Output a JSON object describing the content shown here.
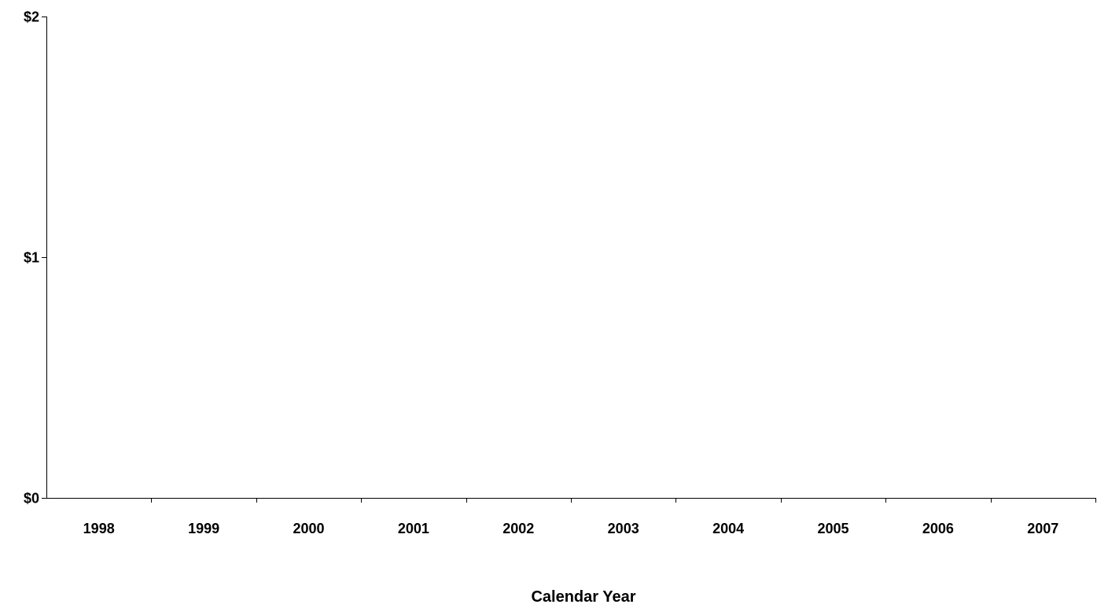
{
  "chart_data": {
    "type": "bar",
    "title": "",
    "xlabel": "Calendar Year",
    "ylabel": "",
    "categories": [
      "1998",
      "1999",
      "2000",
      "2001",
      "2002",
      "2003",
      "2004",
      "2005",
      "2006",
      "2007"
    ],
    "series": [],
    "ylim": [
      0,
      2
    ],
    "y_ticks": [
      0,
      1,
      2
    ],
    "y_tick_labels": [
      "$0",
      "$1",
      "$2"
    ],
    "grid": false,
    "legend": "none",
    "colors": {
      "axis": "#000000",
      "text": "#000000",
      "background": "#ffffff"
    }
  }
}
